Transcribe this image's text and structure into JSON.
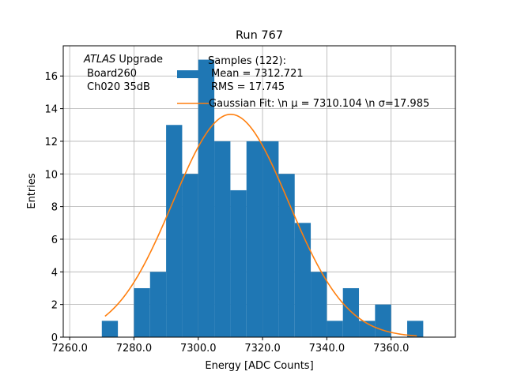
{
  "chart_data": {
    "type": "bar",
    "title": "Run 767",
    "xlabel": "Energy [ADC Counts]",
    "ylabel": "Entries",
    "xlim": [
      7258.0,
      7380.0
    ],
    "ylim": [
      0,
      17.85
    ],
    "grid": true,
    "x_ticks": [
      7260.0,
      7280.0,
      7300.0,
      7320.0,
      7340.0,
      7360.0
    ],
    "x_tick_labels": [
      "7260.0",
      "7280.0",
      "7300.0",
      "7320.0",
      "7340.0",
      "7360.0"
    ],
    "y_ticks": [
      0,
      2,
      4,
      6,
      8,
      10,
      12,
      14,
      16
    ],
    "y_tick_labels": [
      "0",
      "2",
      "4",
      "6",
      "8",
      "10",
      "12",
      "14",
      "16"
    ],
    "histogram": {
      "name": "Samples (122)",
      "color": "#1f77b4",
      "bin_edges": [
        7270.0,
        7275.0,
        7280.0,
        7285.0,
        7290.0,
        7295.0,
        7300.0,
        7305.0,
        7310.0,
        7315.0,
        7320.0,
        7325.0,
        7330.0,
        7335.0,
        7340.0,
        7345.0,
        7350.0,
        7355.0,
        7360.0,
        7365.0,
        7370.0
      ],
      "counts": [
        1,
        0,
        3,
        4,
        13,
        10,
        17,
        12,
        9,
        12,
        12,
        10,
        7,
        4,
        1,
        3,
        1,
        2,
        0,
        1
      ]
    },
    "fit": {
      "name": "Gaussian Fit",
      "color": "#ff7f0e",
      "mu": 7310.104,
      "sigma": 17.985,
      "amplitude": 13.65,
      "x_range": [
        7271.0,
        7368.0
      ]
    },
    "annotation_lines": [
      "ATLAS Upgrade",
      "Board260",
      "Ch020 35dB"
    ],
    "legend": {
      "placement": "top-center",
      "entries": [
        {
          "kind": "patch",
          "lines": [
            "Samples (122):",
            "Mean = 7312.721",
            "RMS = 17.745"
          ]
        },
        {
          "kind": "line",
          "text": "Gaussian Fit: \\n μ = 7310.104 \\n σ=17.985"
        }
      ]
    }
  }
}
